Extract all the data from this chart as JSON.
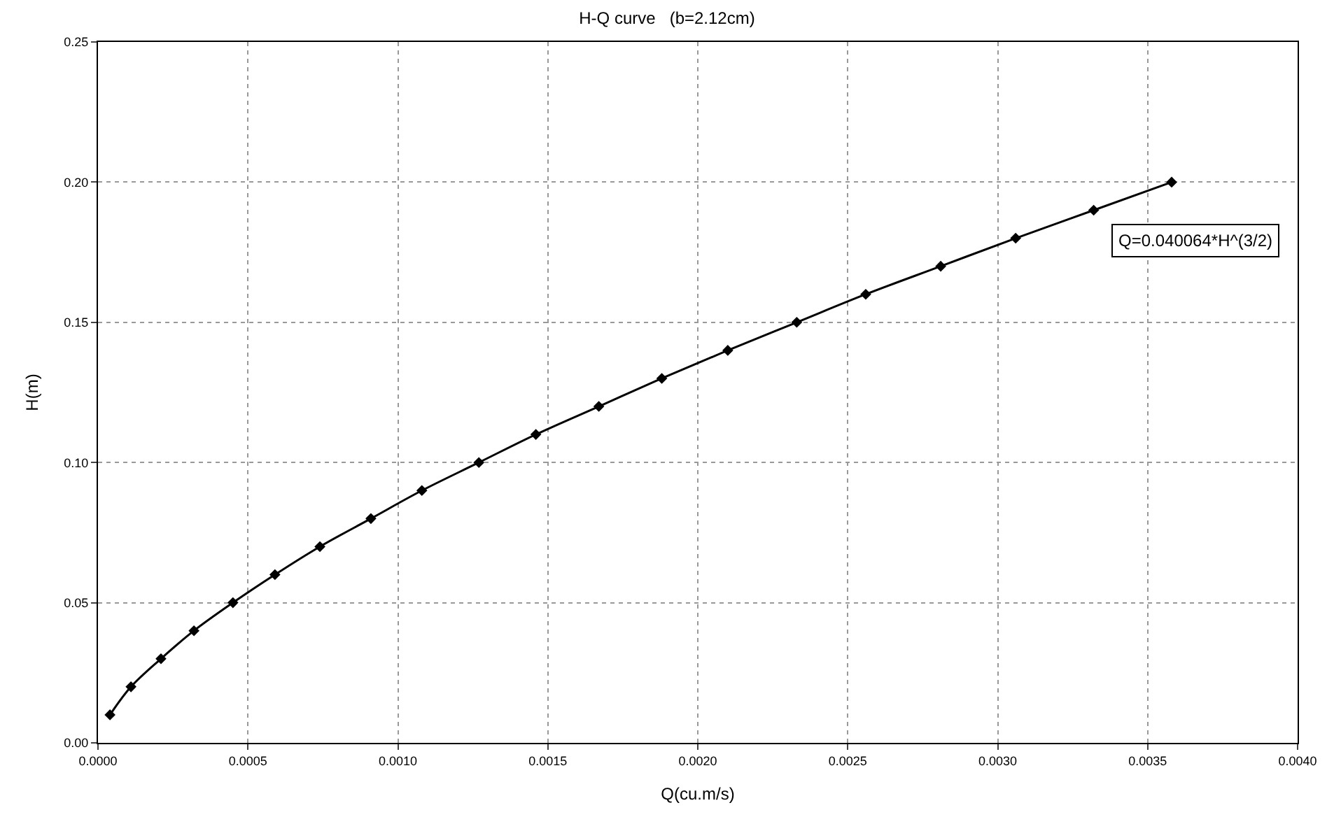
{
  "chart_data": {
    "type": "line",
    "title": "H-Q curve   (b=2.12cm)",
    "xlabel": "Q(cu.m/s)",
    "ylabel": "H(m)",
    "x": [
      4e-05,
      0.00011,
      0.00021,
      0.00032,
      0.00045,
      0.00059,
      0.00074,
      0.00091,
      0.00108,
      0.00127,
      0.00146,
      0.00167,
      0.00188,
      0.0021,
      0.00233,
      0.00256,
      0.00281,
      0.00306,
      0.00332,
      0.00358
    ],
    "series": [
      {
        "color": "#000000",
        "values": [
          0.01,
          0.02,
          0.03,
          0.04,
          0.05,
          0.06,
          0.07,
          0.08,
          0.09,
          0.1,
          0.11,
          0.12,
          0.13,
          0.14,
          0.15,
          0.16,
          0.17,
          0.18,
          0.19,
          0.2
        ]
      }
    ],
    "xlim": [
      0,
      0.004
    ],
    "ylim": [
      0,
      0.25
    ],
    "xticks": [
      {
        "value": 0,
        "label": "0.0000"
      },
      {
        "value": 0.0005,
        "label": "0.0005"
      },
      {
        "value": 0.001,
        "label": "0.0010"
      },
      {
        "value": 0.0015,
        "label": "0.0015"
      },
      {
        "value": 0.002,
        "label": "0.0020"
      },
      {
        "value": 0.0025,
        "label": "0.0025"
      },
      {
        "value": 0.003,
        "label": "0.0030"
      },
      {
        "value": 0.0035,
        "label": "0.0035"
      },
      {
        "value": 0.004,
        "label": "0.0040"
      }
    ],
    "yticks": [
      {
        "value": 0,
        "label": "0.00"
      },
      {
        "value": 0.05,
        "label": "0.05"
      },
      {
        "value": 0.1,
        "label": "0.10"
      },
      {
        "value": 0.15,
        "label": "0.15"
      },
      {
        "value": 0.2,
        "label": "0.20"
      },
      {
        "value": 0.25,
        "label": "0.25"
      }
    ],
    "annotations": [
      "Q=0.040064*H^(3/2)"
    ],
    "grid": true,
    "legend": false,
    "marker": "diamond",
    "line_style": "solid"
  }
}
